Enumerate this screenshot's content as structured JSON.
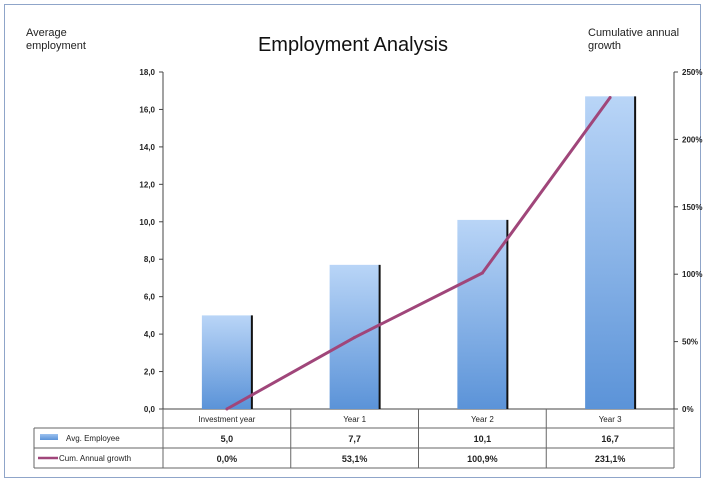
{
  "chart_data": {
    "type": "bar",
    "title": "Employment Analysis",
    "ylabel": "Average employment",
    "ylabel_right": "Cumulative annual growth",
    "categories": [
      "Investment year",
      "Year 1",
      "Year 2",
      "Year 3"
    ],
    "ylim": [
      0,
      18
    ],
    "yticks": [
      "0,0",
      "2,0",
      "4,0",
      "6,0",
      "8,0",
      "10,0",
      "12,0",
      "14,0",
      "16,0",
      "18,0"
    ],
    "y2lim": [
      0,
      250
    ],
    "y2ticks": [
      "0%",
      "50%",
      "100%",
      "150%",
      "200%",
      "250%"
    ],
    "series": [
      {
        "name": "Avg. Employee",
        "type": "bar",
        "axis": "left",
        "values": [
          5.0,
          7.7,
          10.1,
          16.7
        ],
        "labels": [
          "5,0",
          "7,7",
          "10,1",
          "16,7"
        ],
        "color": "#5b9bd5"
      },
      {
        "name": "Cum. Annual growth",
        "type": "line",
        "axis": "right",
        "values": [
          0.0,
          53.1,
          100.9,
          231.1
        ],
        "labels": [
          "0,0%",
          "53,1%",
          "100,9%",
          "231,1%"
        ],
        "color": "#a0467a"
      }
    ],
    "legend": "data-table-left",
    "grid": false
  }
}
